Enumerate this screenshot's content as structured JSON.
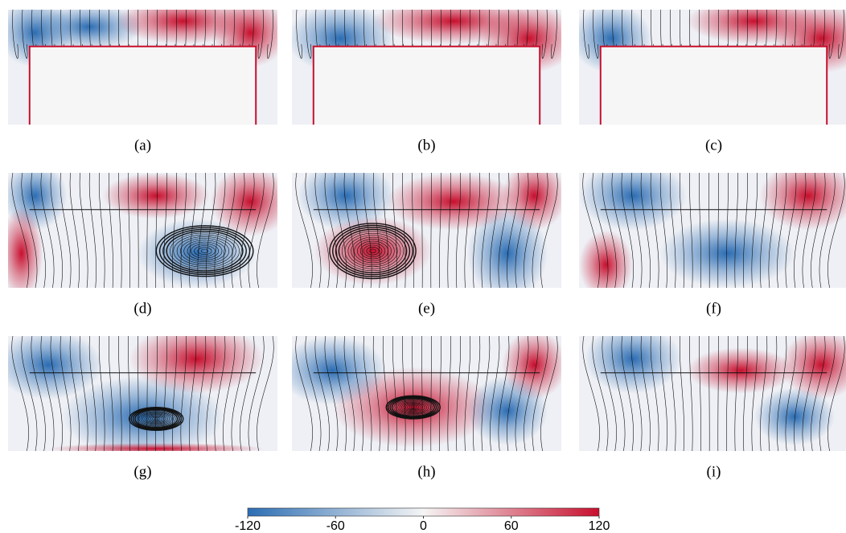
{
  "panels": [
    {
      "label": "(a)"
    },
    {
      "label": "(b)"
    },
    {
      "label": "(c)"
    },
    {
      "label": "(d)"
    },
    {
      "label": "(e)"
    },
    {
      "label": "(f)"
    },
    {
      "label": "(g)"
    },
    {
      "label": "(h)"
    },
    {
      "label": "(i)"
    }
  ],
  "colorbar": {
    "lim": [
      -120,
      120
    ],
    "ticks": [
      -120,
      -60,
      0,
      60,
      120
    ],
    "colors": [
      "#2c6db3",
      "#f5f5f5",
      "#c8102e"
    ]
  }
}
